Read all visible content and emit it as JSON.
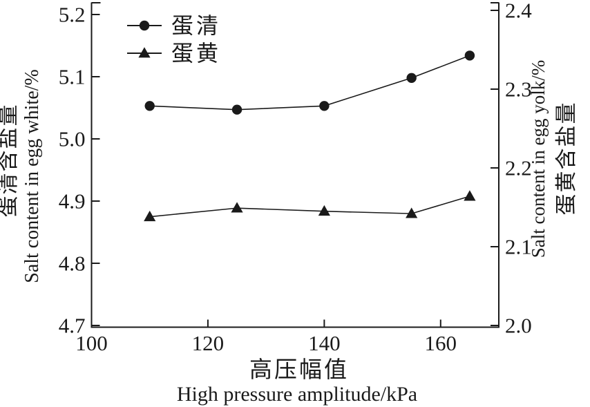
{
  "chart_data": {
    "type": "line",
    "x": [
      110,
      125,
      140,
      155,
      165
    ],
    "series": [
      {
        "key": "egg-white",
        "name": "蛋清",
        "axis": "left",
        "marker": "circle",
        "values": [
          5.053,
          5.047,
          5.053,
          5.098,
          5.134
        ]
      },
      {
        "key": "egg-yolk",
        "name": "蛋黄",
        "axis": "right",
        "marker": "triangle",
        "values": [
          2.138,
          2.149,
          2.145,
          2.142,
          2.164
        ]
      }
    ],
    "x_axis": {
      "label_zh": "高压幅值",
      "label_en": "High pressure amplitude/kPa",
      "ticks": [
        100,
        120,
        140,
        160
      ],
      "range": [
        100,
        170
      ]
    },
    "left_axis": {
      "label_zh": "蛋清含盐量",
      "label_en": "Salt content in egg white/%",
      "ticks": [
        5.2,
        5.1,
        5.0,
        4.9,
        4.8,
        4.7
      ],
      "range": [
        4.7,
        5.2
      ]
    },
    "right_axis": {
      "label_zh": "蛋黄含盐量",
      "label_en": "Salt content in egg yolk/%",
      "ticks": [
        2.4,
        2.3,
        2.2,
        2.1,
        2.0
      ],
      "range": [
        2.0,
        2.4
      ]
    },
    "legend": {
      "position": "top-left",
      "entries": [
        {
          "key": "egg-white",
          "label": "蛋清",
          "marker": "circle"
        },
        {
          "key": "egg-yolk",
          "label": "蛋黄",
          "marker": "triangle"
        }
      ]
    },
    "grid": false,
    "color": "#1a1a1a",
    "background": "#ffffff"
  }
}
